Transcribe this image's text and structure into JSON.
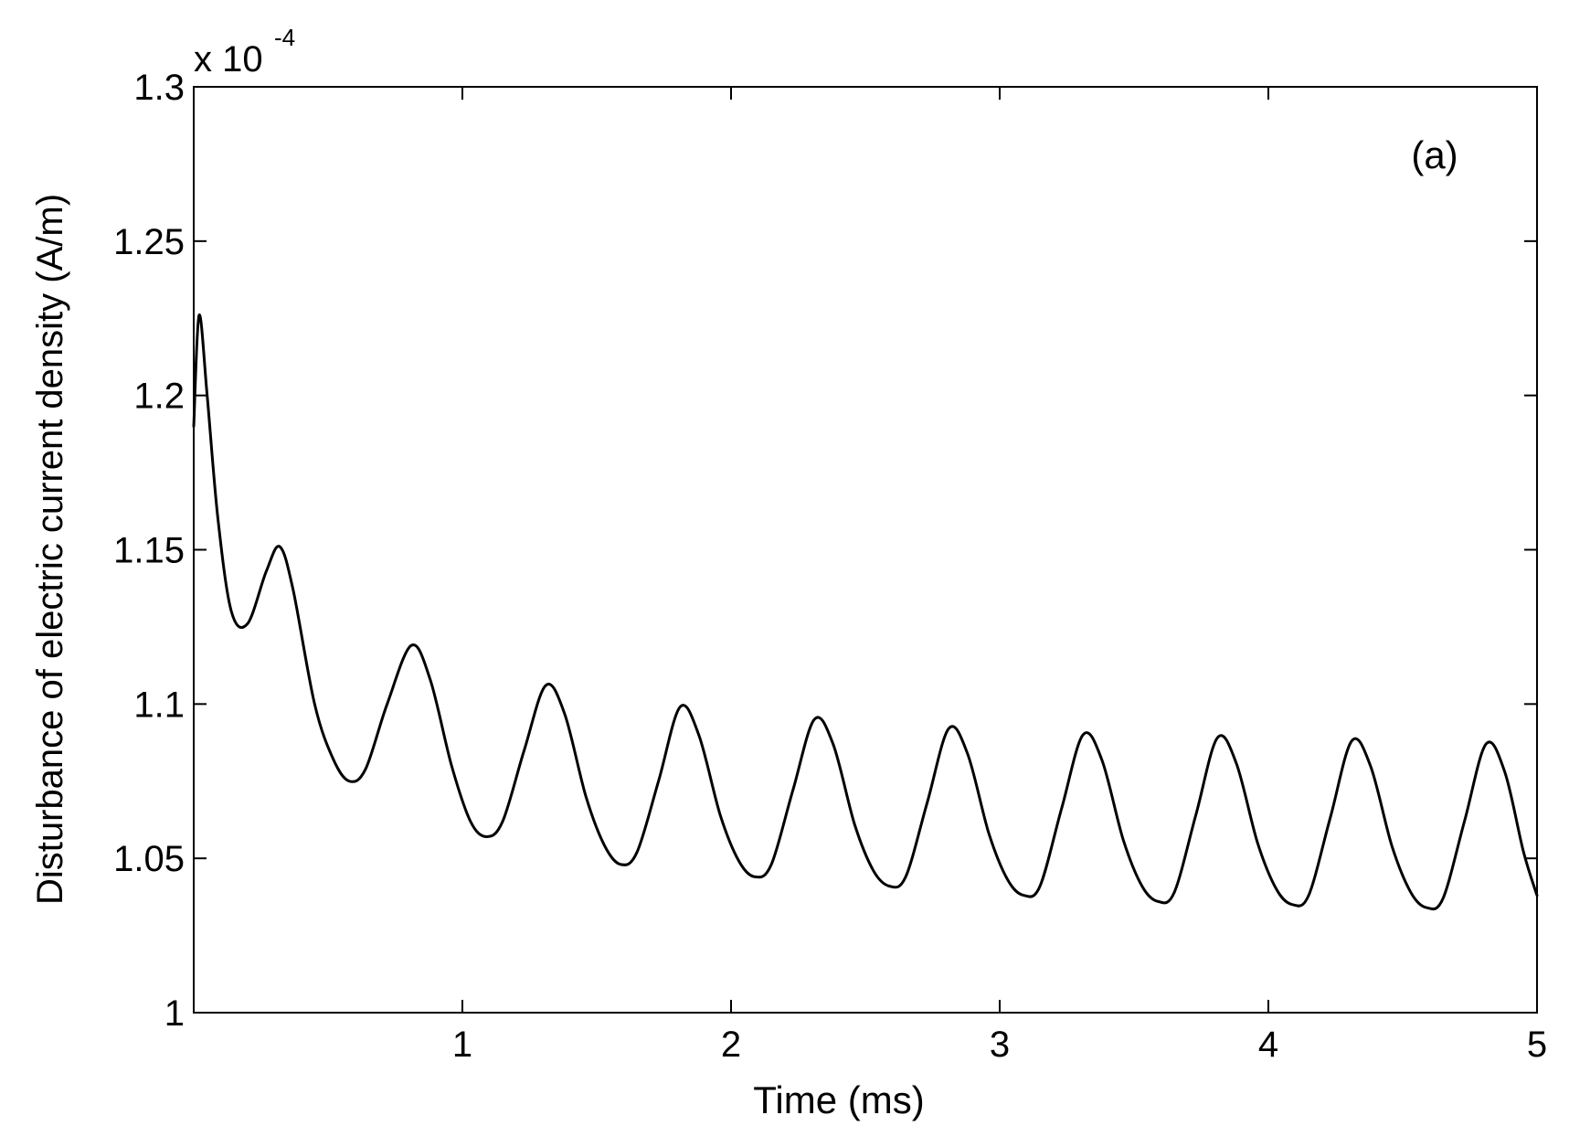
{
  "chart_data": {
    "type": "line",
    "title": "",
    "xlabel": "Time (ms)",
    "ylabel": "Disturbance of electric current density (A/m)",
    "exponent_label": {
      "base": "x 10",
      "power": "-4"
    },
    "annotation": "(a)",
    "xlim": [
      0,
      5
    ],
    "ylim": [
      1.0,
      1.3
    ],
    "xticks": [
      1,
      2,
      3,
      4,
      5
    ],
    "xtick_labels": [
      "1",
      "2",
      "3",
      "4",
      "5"
    ],
    "yticks": [
      1.0,
      1.05,
      1.1,
      1.15,
      1.2,
      1.25,
      1.3
    ],
    "ytick_labels": [
      "1",
      "1.05",
      "1.1",
      "1.15",
      "1.2",
      "1.25",
      "1.3"
    ],
    "grid": false,
    "line_color": "#000000",
    "series": [
      {
        "x": [
          0.0,
          0.02,
          0.05,
          0.09,
          0.14,
          0.2,
          0.27,
          0.32,
          0.37,
          0.45,
          0.52,
          0.58,
          0.64,
          0.72,
          0.81,
          0.88,
          0.96,
          1.03,
          1.09,
          1.15,
          1.23,
          1.31,
          1.38,
          1.46,
          1.53,
          1.59,
          1.65,
          1.73,
          1.81,
          1.88,
          1.96,
          2.03,
          2.09,
          2.15,
          2.23,
          2.31,
          2.38,
          2.46,
          2.53,
          2.59,
          2.65,
          2.73,
          2.81,
          2.88,
          2.96,
          3.03,
          3.09,
          3.15,
          3.23,
          3.31,
          3.38,
          3.46,
          3.53,
          3.59,
          3.65,
          3.73,
          3.81,
          3.88,
          3.96,
          4.03,
          4.09,
          4.15,
          4.23,
          4.31,
          4.38,
          4.46,
          4.53,
          4.59,
          4.65,
          4.73,
          4.81,
          4.88,
          4.95,
          5.0
        ],
        "y": [
          1.19,
          1.226,
          1.2,
          1.16,
          1.13,
          1.126,
          1.143,
          1.151,
          1.137,
          1.1,
          1.082,
          1.075,
          1.079,
          1.1,
          1.119,
          1.108,
          1.08,
          1.062,
          1.057,
          1.062,
          1.085,
          1.106,
          1.097,
          1.07,
          1.054,
          1.048,
          1.052,
          1.075,
          1.099,
          1.09,
          1.064,
          1.049,
          1.044,
          1.048,
          1.072,
          1.095,
          1.087,
          1.061,
          1.046,
          1.041,
          1.044,
          1.068,
          1.092,
          1.084,
          1.058,
          1.043,
          1.038,
          1.041,
          1.066,
          1.09,
          1.082,
          1.056,
          1.041,
          1.036,
          1.039,
          1.064,
          1.089,
          1.081,
          1.055,
          1.04,
          1.035,
          1.038,
          1.063,
          1.088,
          1.08,
          1.054,
          1.039,
          1.034,
          1.037,
          1.062,
          1.087,
          1.078,
          1.052,
          1.038
        ]
      }
    ]
  }
}
